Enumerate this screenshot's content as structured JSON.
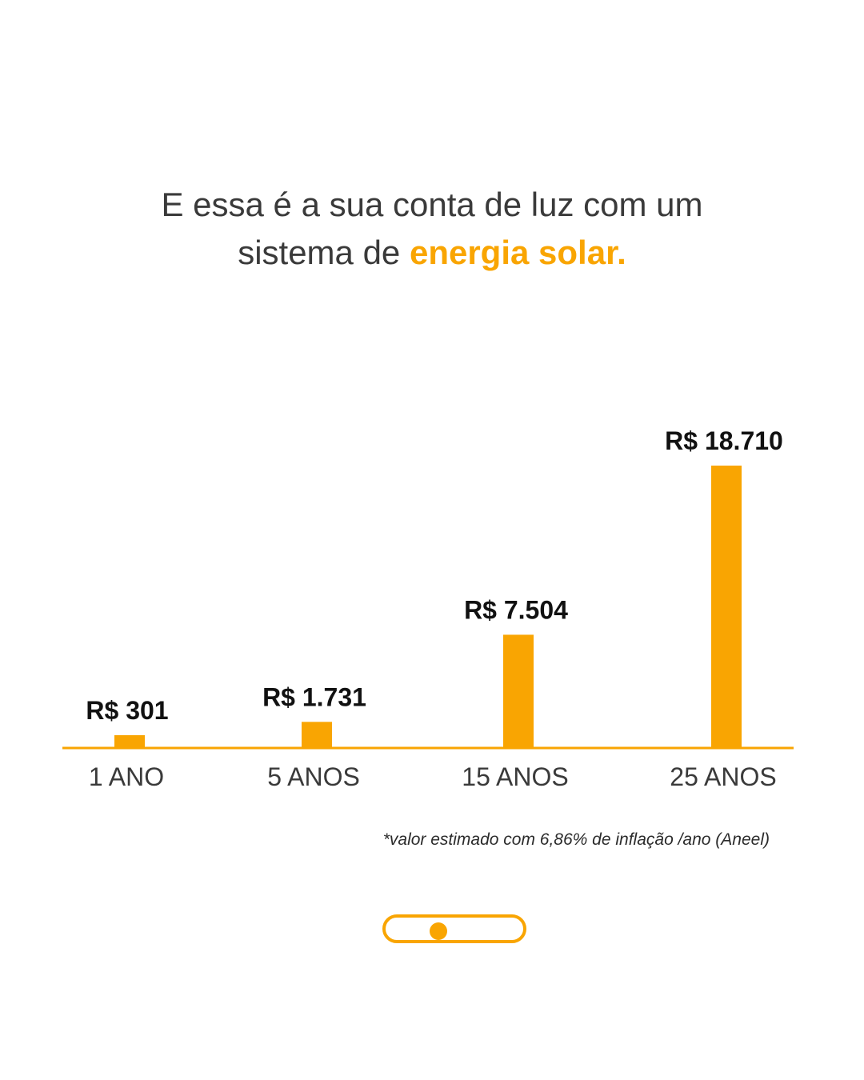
{
  "headline": {
    "line1": "E essa é a sua conta de luz com um",
    "line2_prefix": "sistema de ",
    "line2_highlight": "energia solar."
  },
  "chart_data": {
    "type": "bar",
    "categories": [
      "1 ANO",
      "5 ANOS",
      "15 ANOS",
      "25 ANOS"
    ],
    "values": [
      301,
      1731,
      7504,
      18710
    ],
    "data_labels": [
      "R$ 301",
      "R$ 1.731",
      "R$ 7.504",
      "R$ 18.710"
    ],
    "title": "",
    "xlabel": "",
    "ylabel": "",
    "ylim": [
      0,
      18710
    ],
    "grid": false,
    "legend": "none",
    "bar_color": "#f9a502",
    "axis_color": "#f9a502"
  },
  "footnote": "*valor estimado com  6,86% de inflação /ano (Aneel)",
  "pager": {
    "total_pages": 1,
    "active_page": 1
  },
  "colors": {
    "accent": "#f9a502",
    "text_primary": "#3a3a3a",
    "label_text": "#111111"
  }
}
